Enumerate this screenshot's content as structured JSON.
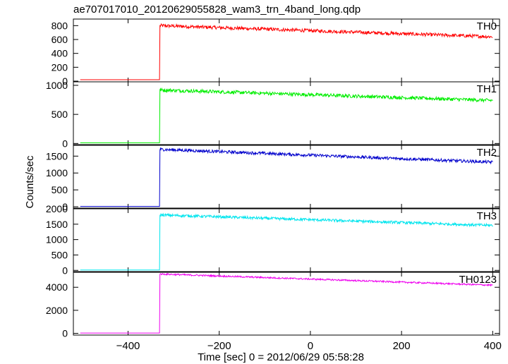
{
  "chart_data": {
    "type": "line",
    "title": "ae707017010_20120629055828_wam3_trn_4band_long.qdp",
    "xlabel": "Time [sec] 0 = 2012/06/29 05:58:28",
    "ylabel": "Counts/sec",
    "xlim": [
      -520,
      415
    ],
    "x_ticks": [
      -400,
      -200,
      0,
      200,
      400
    ],
    "x_tick_labels": [
      "−400",
      "−200",
      "0",
      "200",
      "400"
    ],
    "grid": false,
    "panels": [
      {
        "label": "TH0",
        "color": "#ff0000",
        "ylim": [
          -10,
          895
        ],
        "y_ticks": [
          0,
          200,
          400,
          600,
          800
        ],
        "y_tick_labels": [
          "0",
          "200",
          "400",
          "600",
          "800"
        ],
        "x_start": -505,
        "x_end": 400,
        "rise_x": -330,
        "pre_level": 20,
        "peak_level": 800,
        "end_level": 640,
        "noise": 25
      },
      {
        "label": "TH1",
        "color": "#00ee00",
        "ylim": [
          -20,
          1060
        ],
        "y_ticks": [
          0,
          500,
          1000
        ],
        "y_tick_labels": [
          "0",
          "500",
          "1000"
        ],
        "x_start": -505,
        "x_end": 400,
        "rise_x": -330,
        "pre_level": 10,
        "peak_level": 920,
        "end_level": 740,
        "noise": 30
      },
      {
        "label": "TH2",
        "color": "#0000cc",
        "ylim": [
          -40,
          1820
        ],
        "y_ticks": [
          0,
          500,
          1000,
          1500
        ],
        "y_tick_labels": [
          "0",
          "500",
          "1000",
          "1500"
        ],
        "x_start": -505,
        "x_end": 400,
        "rise_x": -330,
        "pre_level": 10,
        "peak_level": 1700,
        "end_level": 1320,
        "noise": 45
      },
      {
        "label": "TH3",
        "color": "#00e5ee",
        "ylim": [
          -40,
          2000
        ],
        "y_ticks": [
          0,
          500,
          1000,
          1500,
          2000
        ],
        "y_tick_labels": [
          "0",
          "500",
          "1000",
          "1500",
          "2000"
        ],
        "x_start": -505,
        "x_end": 400,
        "rise_x": -330,
        "pre_level": 10,
        "peak_level": 1800,
        "end_level": 1460,
        "noise": 45
      },
      {
        "label": "TH0123",
        "color": "#ee00ee",
        "ylim": [
          -150,
          5300
        ],
        "y_ticks": [
          0,
          2000,
          4000
        ],
        "y_tick_labels": [
          "0",
          "2000",
          "4000"
        ],
        "x_start": -505,
        "x_end": 400,
        "rise_x": -330,
        "pre_level": 30,
        "peak_level": 5150,
        "end_level": 4180,
        "noise": 70
      }
    ]
  }
}
